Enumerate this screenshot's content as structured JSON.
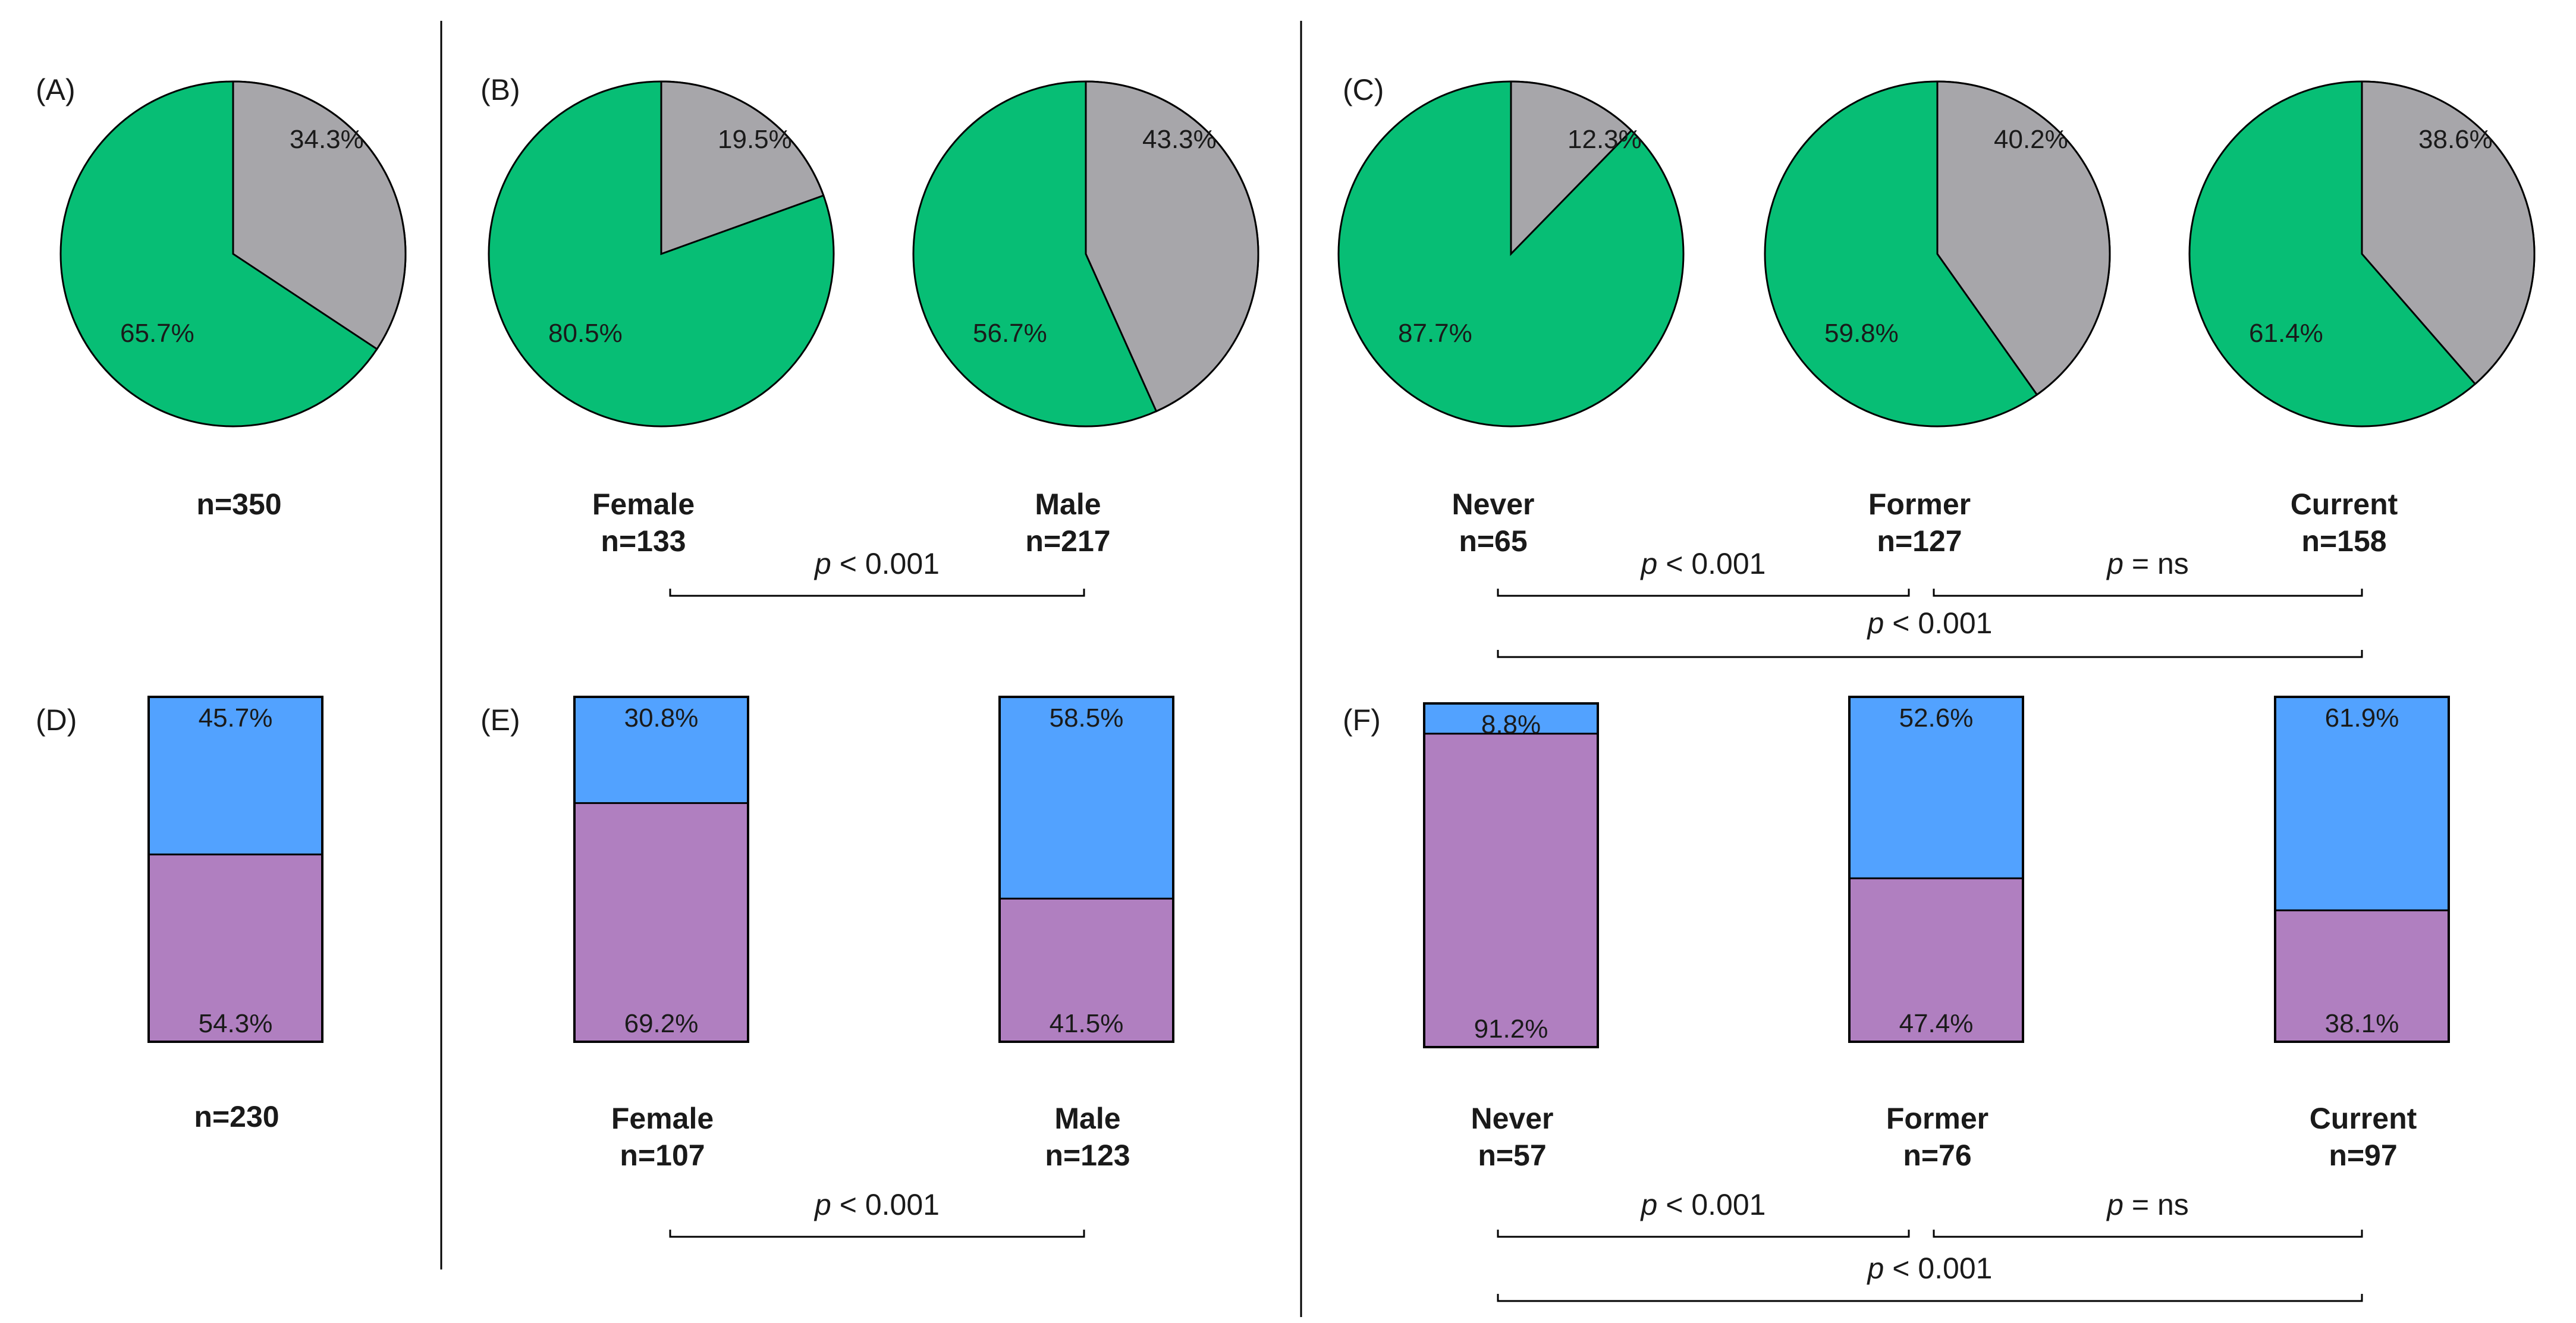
{
  "colors": {
    "pie_a": "#07be75",
    "pie_b": "#a7a6aa",
    "bar_top": "#52a2ff",
    "bar_bottom": "#b07fc0"
  },
  "panels": {
    "A": "(A)",
    "B": "(B)",
    "C": "(C)",
    "D": "(D)",
    "E": "(E)",
    "F": "(F)"
  },
  "chart_data": [
    {
      "type": "pie",
      "panel": "A",
      "pies": [
        {
          "category": "",
          "n": "n=350",
          "slices": [
            34.3,
            65.7
          ],
          "slice_labels": [
            "34.3%",
            "65.7%"
          ]
        }
      ]
    },
    {
      "type": "pie",
      "panel": "B",
      "pies": [
        {
          "category": "Female",
          "n": "n=133",
          "slices": [
            19.5,
            80.5
          ],
          "slice_labels": [
            "19.5%",
            "80.5%"
          ]
        },
        {
          "category": "Male",
          "n": "n=217",
          "slices": [
            43.3,
            56.7
          ],
          "slice_labels": [
            "43.3%",
            "56.7%"
          ]
        }
      ],
      "comparisons": [
        {
          "between": [
            "Female",
            "Male"
          ],
          "p_symbol": "p",
          "p_text": " < 0.001"
        }
      ]
    },
    {
      "type": "pie",
      "panel": "C",
      "pies": [
        {
          "category": "Never",
          "n": "n=65",
          "slices": [
            12.3,
            87.7
          ],
          "slice_labels": [
            "12.3%",
            "87.7%"
          ]
        },
        {
          "category": "Former",
          "n": "n=127",
          "slices": [
            40.2,
            59.8
          ],
          "slice_labels": [
            "40.2%",
            "59.8%"
          ]
        },
        {
          "category": "Current",
          "n": "n=158",
          "slices": [
            38.6,
            61.4
          ],
          "slice_labels": [
            "38.6%",
            "61.4%"
          ]
        }
      ],
      "comparisons": [
        {
          "between": [
            "Never",
            "Former"
          ],
          "p_symbol": "p",
          "p_text": " < 0.001"
        },
        {
          "between": [
            "Former",
            "Current"
          ],
          "p_symbol": "p",
          "p_text": " = ns"
        },
        {
          "between": [
            "Never",
            "Current"
          ],
          "p_symbol": "p",
          "p_text": " < 0.001"
        }
      ]
    },
    {
      "type": "bar",
      "stacked": true,
      "panel": "D",
      "bars": [
        {
          "category": "",
          "n": "n=230",
          "top": 45.7,
          "bottom": 54.3,
          "top_label": "45.7%",
          "bottom_label": "54.3%"
        }
      ]
    },
    {
      "type": "bar",
      "stacked": true,
      "panel": "E",
      "bars": [
        {
          "category": "Female",
          "n": "n=107",
          "top": 30.8,
          "bottom": 69.2,
          "top_label": "30.8%",
          "bottom_label": "69.2%"
        },
        {
          "category": "Male",
          "n": "n=123",
          "top": 58.5,
          "bottom": 41.5,
          "top_label": "58.5%",
          "bottom_label": "41.5%"
        }
      ],
      "comparisons": [
        {
          "between": [
            "Female",
            "Male"
          ],
          "p_symbol": "p",
          "p_text": " < 0.001"
        }
      ]
    },
    {
      "type": "bar",
      "stacked": true,
      "panel": "F",
      "bars": [
        {
          "category": "Never",
          "n": "n=57",
          "top": 8.8,
          "bottom": 91.2,
          "top_label": "8.8%",
          "bottom_label": "91.2%"
        },
        {
          "category": "Former",
          "n": "n=76",
          "top": 52.6,
          "bottom": 47.4,
          "top_label": "52.6%",
          "bottom_label": "47.4%"
        },
        {
          "category": "Current",
          "n": "n=97",
          "top": 61.9,
          "bottom": 38.1,
          "top_label": "61.9%",
          "bottom_label": "38.1%"
        }
      ],
      "comparisons": [
        {
          "between": [
            "Never",
            "Former"
          ],
          "p_symbol": "p",
          "p_text": " < 0.001"
        },
        {
          "between": [
            "Former",
            "Current"
          ],
          "p_symbol": "p",
          "p_text": " = ns"
        },
        {
          "between": [
            "Never",
            "Current"
          ],
          "p_symbol": "p",
          "p_text": " < 0.001"
        }
      ]
    }
  ]
}
